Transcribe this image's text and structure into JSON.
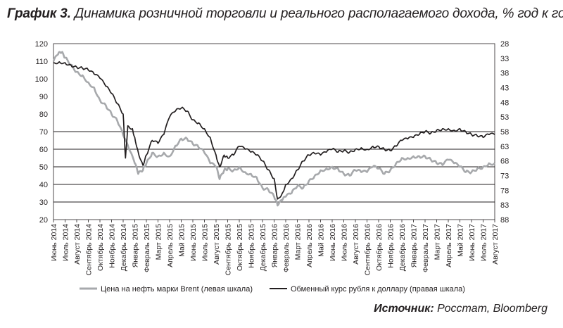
{
  "title": {
    "lead": "График 3.",
    "text": "Динамика розничной торговли и реального располагаемого дохода, % год к году"
  },
  "source": {
    "lead": "Источник:",
    "text": "Росстат, Bloomberg"
  },
  "colors": {
    "brent": "#a7a9ac",
    "rub": "#231f20",
    "grid": "#231f20"
  },
  "chart_data": {
    "type": "line",
    "y_left": {
      "ticks": [
        20,
        30,
        40,
        50,
        60,
        70,
        80,
        90,
        100,
        110,
        120
      ],
      "range": [
        20,
        120
      ]
    },
    "y_right": {
      "ticks": [
        28,
        33,
        38,
        43,
        48,
        53,
        58,
        63,
        68,
        73,
        78,
        83,
        88
      ],
      "range": [
        28,
        88
      ],
      "inverted": true
    },
    "x_labels": [
      "Июнь 2014",
      "Июль 2014",
      "Август 2014",
      "Сентябрь 2014",
      "Октябрь 2014",
      "Ноябрь 2014",
      "Декабрь 2014",
      "Январь 2015",
      "Февраль 2015",
      "Март 2015",
      "Апрель 2015",
      "Май 2015",
      "Июнь 2015",
      "Июль 2015",
      "Август 2015",
      "Сентябрь 2015",
      "Октябрь 2015",
      "Ноябрь 2015",
      "Декабрь 2015",
      "Январь 2016",
      "Февраль 2016",
      "Март 2016",
      "Апрель 2016",
      "Май 2016",
      "Июнь 2016",
      "Июль 2016",
      "Август 2016",
      "Сентябрь 2016",
      "Октябрь 2016",
      "Ноябрь 2016",
      "Декабрь 2016",
      "Январь 2017",
      "Февраль 2017",
      "Март 2017",
      "Апрель 2017",
      "Май 2017",
      "Июнь 2017",
      "Июль 2017",
      "Август 2017"
    ],
    "series": [
      {
        "name": "Цена на нефть марки Brent (левая шкала)",
        "axis": "left",
        "values": [
          {
            "x": 0,
            "y": 110
          },
          {
            "x": 0.4,
            "y": 114
          },
          {
            "x": 0.7,
            "y": 115
          },
          {
            "x": 1,
            "y": 112
          },
          {
            "x": 1.5,
            "y": 108
          },
          {
            "x": 2,
            "y": 104
          },
          {
            "x": 2.5,
            "y": 102
          },
          {
            "x": 3,
            "y": 98
          },
          {
            "x": 3.5,
            "y": 95
          },
          {
            "x": 4,
            "y": 88
          },
          {
            "x": 4.5,
            "y": 85
          },
          {
            "x": 5,
            "y": 80
          },
          {
            "x": 5.5,
            "y": 76
          },
          {
            "x": 6,
            "y": 68
          },
          {
            "x": 6.5,
            "y": 60
          },
          {
            "x": 7,
            "y": 52
          },
          {
            "x": 7.3,
            "y": 46
          },
          {
            "x": 7.7,
            "y": 48
          },
          {
            "x": 8,
            "y": 52
          },
          {
            "x": 8.5,
            "y": 58
          },
          {
            "x": 9,
            "y": 56
          },
          {
            "x": 9.5,
            "y": 58
          },
          {
            "x": 10,
            "y": 56
          },
          {
            "x": 10.5,
            "y": 62
          },
          {
            "x": 11,
            "y": 66
          },
          {
            "x": 11.5,
            "y": 66
          },
          {
            "x": 12,
            "y": 63
          },
          {
            "x": 12.5,
            "y": 61
          },
          {
            "x": 13,
            "y": 58
          },
          {
            "x": 13.5,
            "y": 52
          },
          {
            "x": 14,
            "y": 50
          },
          {
            "x": 14.3,
            "y": 43
          },
          {
            "x": 14.7,
            "y": 48
          },
          {
            "x": 15,
            "y": 49
          },
          {
            "x": 15.5,
            "y": 48
          },
          {
            "x": 16,
            "y": 50
          },
          {
            "x": 16.5,
            "y": 47
          },
          {
            "x": 17,
            "y": 46
          },
          {
            "x": 17.5,
            "y": 44
          },
          {
            "x": 18,
            "y": 38
          },
          {
            "x": 18.5,
            "y": 37
          },
          {
            "x": 19,
            "y": 33
          },
          {
            "x": 19.3,
            "y": 28
          },
          {
            "x": 19.7,
            "y": 31
          },
          {
            "x": 20,
            "y": 33
          },
          {
            "x": 20.5,
            "y": 35
          },
          {
            "x": 21,
            "y": 39
          },
          {
            "x": 21.5,
            "y": 38
          },
          {
            "x": 22,
            "y": 42
          },
          {
            "x": 22.5,
            "y": 45
          },
          {
            "x": 23,
            "y": 48
          },
          {
            "x": 23.5,
            "y": 49
          },
          {
            "x": 24,
            "y": 50
          },
          {
            "x": 24.5,
            "y": 49
          },
          {
            "x": 25,
            "y": 46
          },
          {
            "x": 25.5,
            "y": 45
          },
          {
            "x": 26,
            "y": 48
          },
          {
            "x": 26.5,
            "y": 47
          },
          {
            "x": 27,
            "y": 47
          },
          {
            "x": 27.5,
            "y": 50
          },
          {
            "x": 28,
            "y": 49
          },
          {
            "x": 28.5,
            "y": 46
          },
          {
            "x": 29,
            "y": 48
          },
          {
            "x": 29.5,
            "y": 52
          },
          {
            "x": 30,
            "y": 55
          },
          {
            "x": 30.5,
            "y": 55
          },
          {
            "x": 31,
            "y": 56
          },
          {
            "x": 31.5,
            "y": 56
          },
          {
            "x": 32,
            "y": 56
          },
          {
            "x": 32.5,
            "y": 54
          },
          {
            "x": 33,
            "y": 52
          },
          {
            "x": 33.5,
            "y": 51
          },
          {
            "x": 34,
            "y": 54
          },
          {
            "x": 34.5,
            "y": 52
          },
          {
            "x": 35,
            "y": 50
          },
          {
            "x": 35.5,
            "y": 47
          },
          {
            "x": 36,
            "y": 47
          },
          {
            "x": 36.5,
            "y": 49
          },
          {
            "x": 37,
            "y": 50
          },
          {
            "x": 37.5,
            "y": 52
          },
          {
            "x": 38,
            "y": 52
          }
        ]
      },
      {
        "name": "Обменный курс рубля к доллару (правая шкала)",
        "axis": "right",
        "values": [
          {
            "x": 0,
            "y": 34.5
          },
          {
            "x": 0.5,
            "y": 34.2
          },
          {
            "x": 1,
            "y": 34.5
          },
          {
            "x": 1.5,
            "y": 35.3
          },
          {
            "x": 2,
            "y": 36
          },
          {
            "x": 2.5,
            "y": 36.4
          },
          {
            "x": 3,
            "y": 37
          },
          {
            "x": 3.5,
            "y": 38.4
          },
          {
            "x": 4,
            "y": 39.8
          },
          {
            "x": 4.5,
            "y": 42.5
          },
          {
            "x": 5,
            "y": 45
          },
          {
            "x": 5.5,
            "y": 48.5
          },
          {
            "x": 6,
            "y": 52
          },
          {
            "x": 6.2,
            "y": 67
          },
          {
            "x": 6.4,
            "y": 56
          },
          {
            "x": 6.8,
            "y": 57
          },
          {
            "x": 7,
            "y": 60
          },
          {
            "x": 7.3,
            "y": 65
          },
          {
            "x": 7.7,
            "y": 69.5
          },
          {
            "x": 8,
            "y": 66
          },
          {
            "x": 8.5,
            "y": 61
          },
          {
            "x": 9,
            "y": 62
          },
          {
            "x": 9.5,
            "y": 59
          },
          {
            "x": 10,
            "y": 53
          },
          {
            "x": 10.5,
            "y": 51
          },
          {
            "x": 11,
            "y": 50
          },
          {
            "x": 11.5,
            "y": 51
          },
          {
            "x": 12,
            "y": 54
          },
          {
            "x": 12.5,
            "y": 55
          },
          {
            "x": 13,
            "y": 57
          },
          {
            "x": 13.5,
            "y": 60
          },
          {
            "x": 14,
            "y": 66
          },
          {
            "x": 14.3,
            "y": 70
          },
          {
            "x": 14.7,
            "y": 66
          },
          {
            "x": 15,
            "y": 67
          },
          {
            "x": 15.5,
            "y": 66
          },
          {
            "x": 16,
            "y": 63
          },
          {
            "x": 16.5,
            "y": 64
          },
          {
            "x": 17,
            "y": 65
          },
          {
            "x": 17.5,
            "y": 66
          },
          {
            "x": 18,
            "y": 68
          },
          {
            "x": 18.5,
            "y": 71
          },
          {
            "x": 19,
            "y": 74
          },
          {
            "x": 19.3,
            "y": 81
          },
          {
            "x": 19.7,
            "y": 79
          },
          {
            "x": 20,
            "y": 76
          },
          {
            "x": 20.5,
            "y": 74
          },
          {
            "x": 21,
            "y": 71
          },
          {
            "x": 21.5,
            "y": 68
          },
          {
            "x": 22,
            "y": 66
          },
          {
            "x": 22.5,
            "y": 65.5
          },
          {
            "x": 23,
            "y": 66
          },
          {
            "x": 23.5,
            "y": 65
          },
          {
            "x": 24,
            "y": 64
          },
          {
            "x": 24.5,
            "y": 65
          },
          {
            "x": 25,
            "y": 64.5
          },
          {
            "x": 25.5,
            "y": 65
          },
          {
            "x": 26,
            "y": 64
          },
          {
            "x": 26.5,
            "y": 63.5
          },
          {
            "x": 27,
            "y": 64
          },
          {
            "x": 27.5,
            "y": 63
          },
          {
            "x": 28,
            "y": 63
          },
          {
            "x": 28.5,
            "y": 64
          },
          {
            "x": 29,
            "y": 64.5
          },
          {
            "x": 29.5,
            "y": 63
          },
          {
            "x": 30,
            "y": 61
          },
          {
            "x": 30.5,
            "y": 60.5
          },
          {
            "x": 31,
            "y": 60
          },
          {
            "x": 31.5,
            "y": 59
          },
          {
            "x": 32,
            "y": 58
          },
          {
            "x": 32.5,
            "y": 58.5
          },
          {
            "x": 33,
            "y": 57.5
          },
          {
            "x": 33.5,
            "y": 57
          },
          {
            "x": 34,
            "y": 57
          },
          {
            "x": 34.5,
            "y": 57.5
          },
          {
            "x": 35,
            "y": 57
          },
          {
            "x": 35.5,
            "y": 58
          },
          {
            "x": 36,
            "y": 59
          },
          {
            "x": 36.5,
            "y": 59.5
          },
          {
            "x": 37,
            "y": 60
          },
          {
            "x": 37.5,
            "y": 59
          },
          {
            "x": 38,
            "y": 59
          }
        ]
      }
    ]
  }
}
